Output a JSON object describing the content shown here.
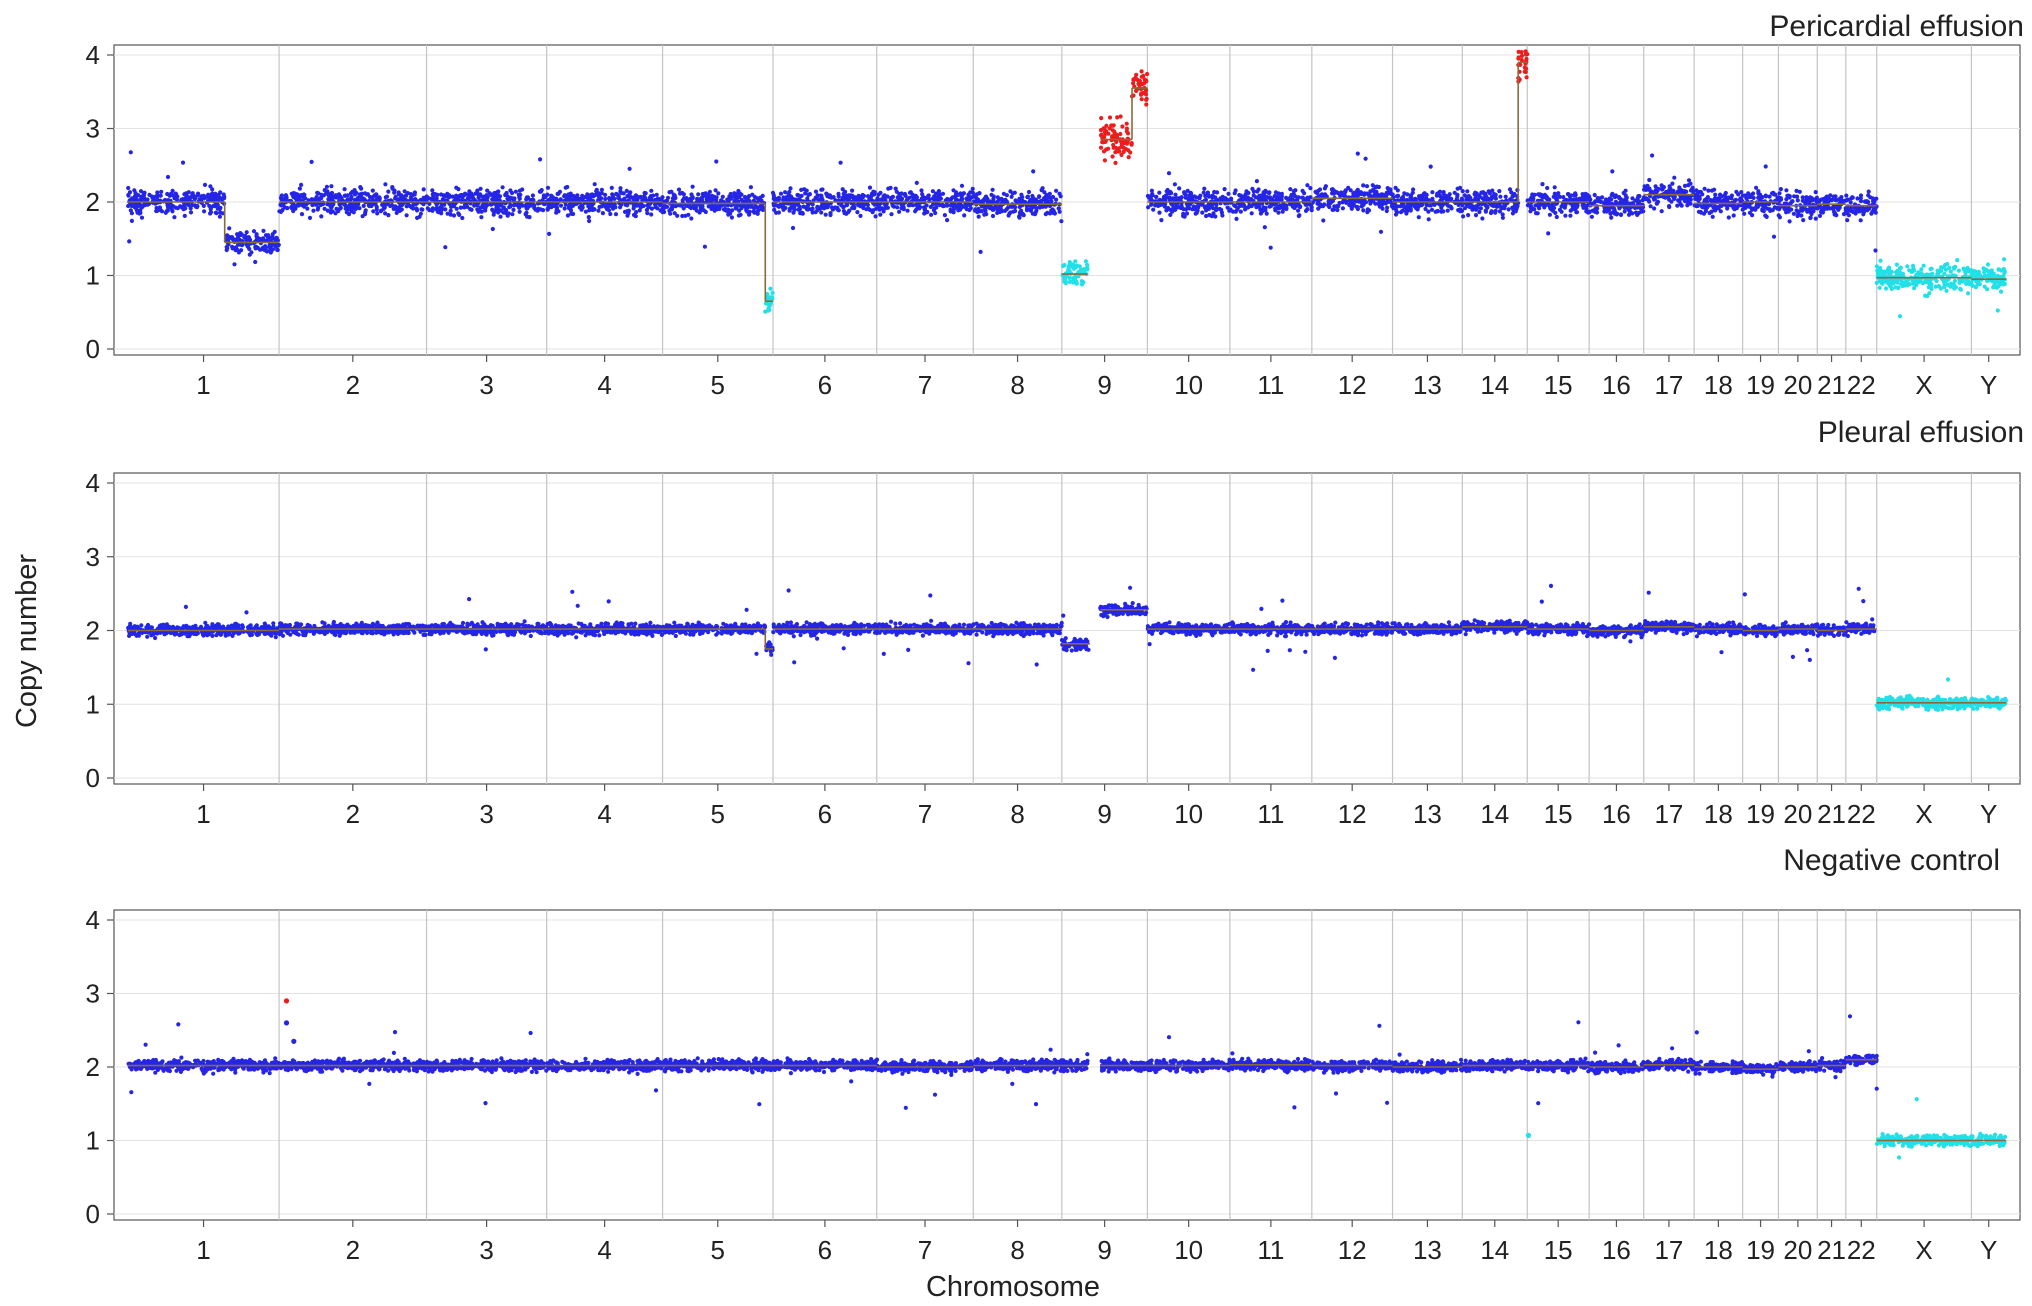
{
  "chart_data": {
    "type": "scatter",
    "x_axis_label": "Chromosome",
    "y_axis_label": "Copy number",
    "ylim": [
      0,
      4
    ],
    "y_ticks": [
      0,
      1,
      2,
      3,
      4
    ],
    "grid": true,
    "chromosomes": [
      "1",
      "2",
      "3",
      "4",
      "5",
      "6",
      "7",
      "8",
      "9",
      "10",
      "11",
      "12",
      "13",
      "14",
      "15",
      "16",
      "17",
      "18",
      "19",
      "20",
      "21",
      "22",
      "X",
      "Y"
    ],
    "chromosome_lengths_mb": [
      249,
      243,
      198,
      191,
      182,
      171,
      159,
      146,
      141,
      136,
      135,
      133,
      115,
      107,
      102,
      90,
      83,
      80,
      59,
      64,
      47,
      51,
      156,
      57
    ],
    "colors": {
      "normal": "#2525e6",
      "gain": "#ee1c1c",
      "loss": "#22e0e8",
      "segment": "#8a6a3a"
    },
    "panels": [
      {
        "title": "Pericardial effusion",
        "segments": [
          {
            "chr": "1",
            "start": 0.0,
            "end": 0.64,
            "cn": 2.0
          },
          {
            "chr": "1",
            "start": 0.64,
            "end": 1.0,
            "cn": 1.45
          },
          {
            "chr": "2",
            "start": 0.0,
            "end": 1.0,
            "cn": 2.0
          },
          {
            "chr": "3",
            "start": 0.0,
            "end": 1.0,
            "cn": 2.0
          },
          {
            "chr": "4",
            "start": 0.0,
            "end": 1.0,
            "cn": 2.0
          },
          {
            "chr": "5",
            "start": 0.0,
            "end": 0.93,
            "cn": 1.98
          },
          {
            "chr": "5",
            "start": 0.93,
            "end": 1.0,
            "cn": 0.65
          },
          {
            "chr": "6",
            "start": 0.0,
            "end": 1.0,
            "cn": 2.0
          },
          {
            "chr": "7",
            "start": 0.0,
            "end": 1.0,
            "cn": 2.0
          },
          {
            "chr": "8",
            "start": 0.0,
            "end": 1.0,
            "cn": 1.97
          },
          {
            "chr": "9",
            "start": 0.0,
            "end": 0.3,
            "cn": 1.02
          },
          {
            "chr": "9",
            "start": 0.3,
            "end": 0.45,
            "cn": null
          },
          {
            "chr": "9",
            "start": 0.45,
            "end": 0.82,
            "cn": 2.85
          },
          {
            "chr": "9",
            "start": 0.82,
            "end": 1.0,
            "cn": 3.55
          },
          {
            "chr": "10",
            "start": 0.0,
            "end": 1.0,
            "cn": 2.0
          },
          {
            "chr": "11",
            "start": 0.0,
            "end": 1.0,
            "cn": 2.0
          },
          {
            "chr": "12",
            "start": 0.0,
            "end": 1.0,
            "cn": 2.05
          },
          {
            "chr": "13",
            "start": 0.0,
            "end": 1.0,
            "cn": 2.0
          },
          {
            "chr": "14",
            "start": 0.0,
            "end": 0.86,
            "cn": 2.0
          },
          {
            "chr": "14",
            "start": 0.86,
            "end": 1.0,
            "cn": 3.9
          },
          {
            "chr": "15",
            "start": 0.0,
            "end": 1.0,
            "cn": 2.0
          },
          {
            "chr": "16",
            "start": 0.0,
            "end": 1.0,
            "cn": 1.95
          },
          {
            "chr": "17",
            "start": 0.0,
            "end": 1.0,
            "cn": 2.1
          },
          {
            "chr": "18",
            "start": 0.0,
            "end": 1.0,
            "cn": 1.98
          },
          {
            "chr": "19",
            "start": 0.0,
            "end": 1.0,
            "cn": 2.0
          },
          {
            "chr": "20",
            "start": 0.0,
            "end": 1.0,
            "cn": 1.95
          },
          {
            "chr": "21",
            "start": 0.0,
            "end": 1.0,
            "cn": 1.97
          },
          {
            "chr": "22",
            "start": 0.0,
            "end": 1.0,
            "cn": 1.95
          },
          {
            "chr": "X",
            "start": 0.0,
            "end": 1.0,
            "cn": 0.97
          },
          {
            "chr": "Y",
            "start": 0.0,
            "end": 1.0,
            "cn": 0.95
          }
        ]
      },
      {
        "title": "Pleural effusion",
        "segments": [
          {
            "chr": "1",
            "start": 0.0,
            "end": 1.0,
            "cn": 2.0
          },
          {
            "chr": "2",
            "start": 0.0,
            "end": 1.0,
            "cn": 2.02
          },
          {
            "chr": "3",
            "start": 0.0,
            "end": 1.0,
            "cn": 2.02
          },
          {
            "chr": "4",
            "start": 0.0,
            "end": 1.0,
            "cn": 2.02
          },
          {
            "chr": "5",
            "start": 0.0,
            "end": 0.93,
            "cn": 2.02
          },
          {
            "chr": "5",
            "start": 0.93,
            "end": 1.0,
            "cn": 1.75
          },
          {
            "chr": "6",
            "start": 0.0,
            "end": 1.0,
            "cn": 2.02
          },
          {
            "chr": "7",
            "start": 0.0,
            "end": 1.0,
            "cn": 2.02
          },
          {
            "chr": "8",
            "start": 0.0,
            "end": 1.0,
            "cn": 2.02
          },
          {
            "chr": "9",
            "start": 0.0,
            "end": 0.33,
            "cn": 1.82
          },
          {
            "chr": "9",
            "start": 0.33,
            "end": 0.45,
            "cn": null
          },
          {
            "chr": "9",
            "start": 0.45,
            "end": 1.0,
            "cn": 2.28
          },
          {
            "chr": "10",
            "start": 0.0,
            "end": 1.0,
            "cn": 2.02
          },
          {
            "chr": "11",
            "start": 0.0,
            "end": 1.0,
            "cn": 2.02
          },
          {
            "chr": "12",
            "start": 0.0,
            "end": 1.0,
            "cn": 2.02
          },
          {
            "chr": "13",
            "start": 0.0,
            "end": 1.0,
            "cn": 2.02
          },
          {
            "chr": "14",
            "start": 0.0,
            "end": 1.0,
            "cn": 2.05
          },
          {
            "chr": "15",
            "start": 0.0,
            "end": 1.0,
            "cn": 2.02
          },
          {
            "chr": "16",
            "start": 0.0,
            "end": 1.0,
            "cn": 2.0
          },
          {
            "chr": "17",
            "start": 0.0,
            "end": 1.0,
            "cn": 2.05
          },
          {
            "chr": "18",
            "start": 0.0,
            "end": 1.0,
            "cn": 2.02
          },
          {
            "chr": "19",
            "start": 0.0,
            "end": 1.0,
            "cn": 2.0
          },
          {
            "chr": "20",
            "start": 0.0,
            "end": 1.0,
            "cn": 2.02
          },
          {
            "chr": "21",
            "start": 0.0,
            "end": 1.0,
            "cn": 2.0
          },
          {
            "chr": "22",
            "start": 0.0,
            "end": 1.0,
            "cn": 2.02
          },
          {
            "chr": "X",
            "start": 0.0,
            "end": 1.0,
            "cn": 1.02
          },
          {
            "chr": "Y",
            "start": 0.0,
            "end": 1.0,
            "cn": 1.02
          }
        ]
      },
      {
        "title": "Negative control",
        "segments": [
          {
            "chr": "1",
            "start": 0.0,
            "end": 1.0,
            "cn": 2.02
          },
          {
            "chr": "2",
            "start": 0.0,
            "end": 1.0,
            "cn": 2.02
          },
          {
            "chr": "3",
            "start": 0.0,
            "end": 1.0,
            "cn": 2.02
          },
          {
            "chr": "4",
            "start": 0.0,
            "end": 1.0,
            "cn": 2.02
          },
          {
            "chr": "5",
            "start": 0.0,
            "end": 1.0,
            "cn": 2.02
          },
          {
            "chr": "6",
            "start": 0.0,
            "end": 1.0,
            "cn": 2.02
          },
          {
            "chr": "7",
            "start": 0.0,
            "end": 1.0,
            "cn": 2.0
          },
          {
            "chr": "8",
            "start": 0.0,
            "end": 1.0,
            "cn": 2.02
          },
          {
            "chr": "9",
            "start": 0.0,
            "end": 0.3,
            "cn": 2.02
          },
          {
            "chr": "9",
            "start": 0.3,
            "end": 0.45,
            "cn": null
          },
          {
            "chr": "9",
            "start": 0.45,
            "end": 1.0,
            "cn": 2.02
          },
          {
            "chr": "10",
            "start": 0.0,
            "end": 1.0,
            "cn": 2.02
          },
          {
            "chr": "11",
            "start": 0.0,
            "end": 1.0,
            "cn": 2.03
          },
          {
            "chr": "12",
            "start": 0.0,
            "end": 1.0,
            "cn": 2.02
          },
          {
            "chr": "13",
            "start": 0.0,
            "end": 1.0,
            "cn": 2.0
          },
          {
            "chr": "14",
            "start": 0.0,
            "end": 1.0,
            "cn": 2.02
          },
          {
            "chr": "15",
            "start": 0.0,
            "end": 1.0,
            "cn": 2.02
          },
          {
            "chr": "16",
            "start": 0.0,
            "end": 1.0,
            "cn": 2.0
          },
          {
            "chr": "17",
            "start": 0.0,
            "end": 1.0,
            "cn": 2.03
          },
          {
            "chr": "18",
            "start": 0.0,
            "end": 1.0,
            "cn": 2.0
          },
          {
            "chr": "19",
            "start": 0.0,
            "end": 1.0,
            "cn": 1.97
          },
          {
            "chr": "20",
            "start": 0.0,
            "end": 1.0,
            "cn": 2.0
          },
          {
            "chr": "21",
            "start": 0.0,
            "end": 1.0,
            "cn": 2.02
          },
          {
            "chr": "22",
            "start": 0.0,
            "end": 1.0,
            "cn": 2.1
          },
          {
            "chr": "X",
            "start": 0.0,
            "end": 1.0,
            "cn": 1.0
          },
          {
            "chr": "Y",
            "start": 0.0,
            "end": 1.0,
            "cn": 1.0
          }
        ],
        "outliers": [
          {
            "chr": "2",
            "pos": 0.05,
            "cn": 2.9,
            "status": "gain"
          },
          {
            "chr": "2",
            "pos": 0.05,
            "cn": 2.6,
            "status": "normal"
          },
          {
            "chr": "2",
            "pos": 0.1,
            "cn": 2.35,
            "status": "normal"
          },
          {
            "chr": "15",
            "pos": 0.02,
            "cn": 1.07,
            "status": "loss"
          }
        ]
      }
    ]
  }
}
